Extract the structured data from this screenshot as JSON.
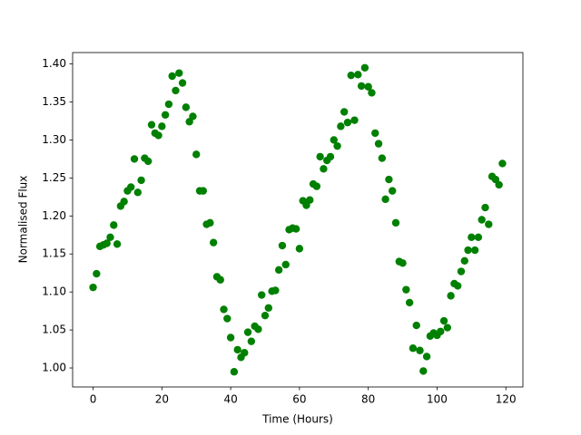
{
  "chart_data": {
    "type": "scatter",
    "x_label": "Time (Hours)",
    "y_label": "Normalised Flux",
    "color": "#008000",
    "x": [
      0,
      1,
      2,
      3,
      4,
      5,
      6,
      7,
      8,
      9,
      10,
      11,
      12,
      13,
      14,
      15,
      16,
      17,
      18,
      19,
      20,
      21,
      22,
      23,
      24,
      25,
      26,
      27,
      28,
      29,
      30,
      31,
      32,
      33,
      34,
      35,
      36,
      37,
      38,
      39,
      40,
      41,
      42,
      43,
      44,
      45,
      46,
      47,
      48,
      49,
      50,
      51,
      52,
      53,
      54,
      55,
      56,
      57,
      58,
      59,
      60,
      61,
      62,
      63,
      64,
      65,
      66,
      67,
      68,
      69,
      70,
      71,
      72,
      73,
      74,
      75,
      76,
      77,
      78,
      79,
      80,
      81,
      82,
      83,
      84,
      85,
      86,
      87,
      88,
      89,
      90,
      91,
      92,
      93,
      94,
      95,
      96,
      97,
      98,
      99,
      100,
      101,
      102,
      103,
      104,
      105,
      106,
      107,
      108,
      109,
      110,
      111,
      112,
      113,
      114,
      115,
      116,
      117,
      118,
      119
    ],
    "values": [
      1.106,
      1.124,
      1.16,
      1.162,
      1.164,
      1.172,
      1.188,
      1.163,
      1.213,
      1.219,
      1.233,
      1.238,
      1.275,
      1.231,
      1.247,
      1.276,
      1.272,
      1.32,
      1.309,
      1.306,
      1.318,
      1.333,
      1.347,
      1.384,
      1.365,
      1.388,
      1.375,
      1.343,
      1.324,
      1.331,
      1.281,
      1.233,
      1.233,
      1.189,
      1.191,
      1.165,
      1.12,
      1.116,
      1.077,
      1.065,
      1.04,
      0.995,
      1.024,
      1.014,
      1.02,
      1.047,
      1.035,
      1.055,
      1.051,
      1.096,
      1.069,
      1.079,
      1.101,
      1.102,
      1.129,
      1.161,
      1.136,
      1.182,
      1.184,
      1.183,
      1.157,
      1.22,
      1.214,
      1.221,
      1.242,
      1.239,
      1.278,
      1.262,
      1.273,
      1.278,
      1.3,
      1.292,
      1.318,
      1.337,
      1.323,
      1.385,
      1.326,
      1.386,
      1.371,
      1.395,
      1.37,
      1.362,
      1.309,
      1.295,
      1.276,
      1.222,
      1.248,
      1.233,
      1.191,
      1.14,
      1.138,
      1.103,
      1.086,
      1.026,
      1.056,
      1.023,
      0.996,
      1.015,
      1.042,
      1.046,
      1.043,
      1.048,
      1.062,
      1.053,
      1.095,
      1.111,
      1.108,
      1.127,
      1.141,
      1.155,
      1.172,
      1.155,
      1.172,
      1.195,
      1.211,
      1.189,
      1.252,
      1.248,
      1.241,
      1.269
    ],
    "xlim": [
      -5.95,
      124.95
    ],
    "ylim": [
      0.975,
      1.415
    ],
    "xticks": [
      0,
      20,
      40,
      60,
      80,
      100,
      120
    ],
    "yticks": [
      {
        "value": 1.0,
        "label": "1.00"
      },
      {
        "value": 1.05,
        "label": "1.05"
      },
      {
        "value": 1.1,
        "label": "1.10"
      },
      {
        "value": 1.15,
        "label": "1.15"
      },
      {
        "value": 1.2,
        "label": "1.20"
      },
      {
        "value": 1.25,
        "label": "1.25"
      },
      {
        "value": 1.3,
        "label": "1.30"
      },
      {
        "value": 1.35,
        "label": "1.35"
      },
      {
        "value": 1.4,
        "label": "1.40"
      }
    ],
    "grid": false
  }
}
